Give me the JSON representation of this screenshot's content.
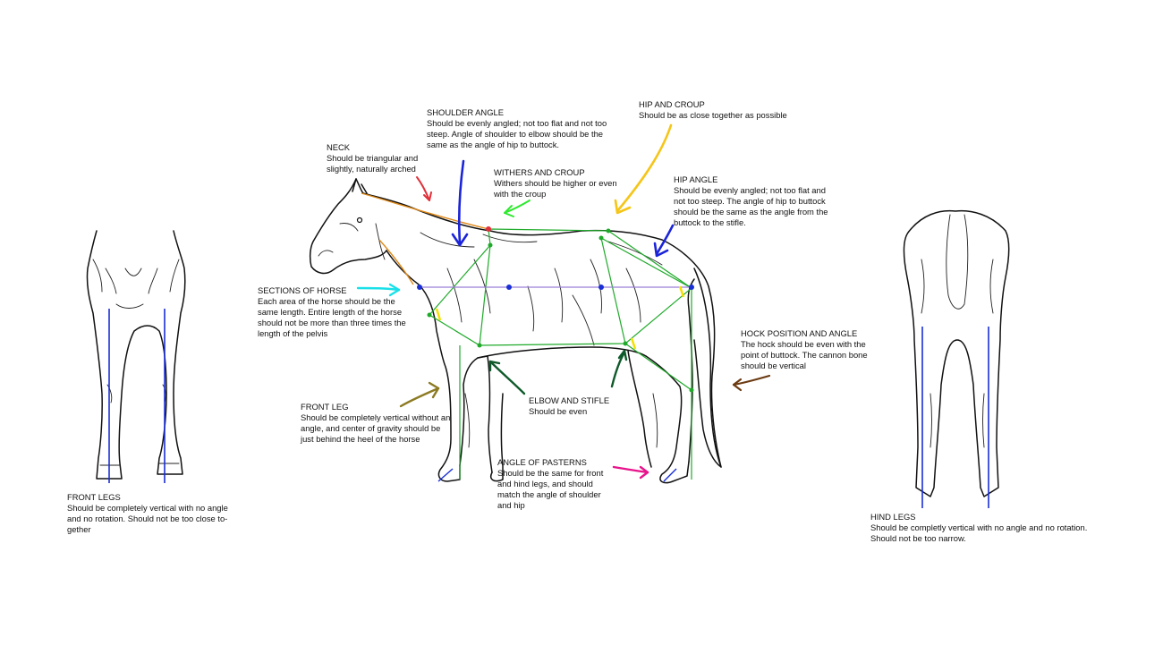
{
  "labels": {
    "shoulder_angle": {
      "title": "SHOULDER ANGLE",
      "text": "Should be evenly angled; not too flat and not too steep. Angle of shoulder to elbow should be the same as the angle of hip to buttock."
    },
    "hip_and_croup": {
      "title": "HIP AND CROUP",
      "text": "Should be as close together as possible"
    },
    "neck": {
      "title": "NECK",
      "text": "Should be triangular and slightly, naturally arched"
    },
    "withers_and_croup": {
      "title": "WITHERS AND CROUP",
      "text": "Withers should be higher or even with the croup"
    },
    "hip_angle": {
      "title": "HIP ANGLE",
      "text": "Should be evenly angled; not too flat and not too steep. The angle of hip to buttock should be the same as the angle from the buttock to the stifle."
    },
    "sections_of_horse": {
      "title": "SECTIONS OF HORSE",
      "text": "Each area of the horse should be the same length. Entire length of the horse should not be more than three times the length of the pelvis"
    },
    "hock_position": {
      "title": "HOCK POSITION AND ANGLE",
      "text": "The hock should be even with the point of buttock. The cannon bone should be vertical"
    },
    "front_leg": {
      "title": "FRONT LEG",
      "text": "Should be completely vertical without an angle, and center of gravity should be just behind the heel of the horse"
    },
    "elbow_and_stifle": {
      "title": "ELBOW AND STIFLE",
      "text": "Should be even"
    },
    "angle_of_pasterns": {
      "title": "ANGLE OF PASTERNS",
      "text": "Should be the same for front and hind legs, and should match the angle of shoulder and hip"
    },
    "front_legs": {
      "title": "FRONT LEGS",
      "text": "Should be completely vertical with no angle and no rotation. Should not be too close to-gether"
    },
    "hind_legs": {
      "title": "HIND LEGS",
      "text": "Should be completly vertical with no angle and no rotation. Should not be too narrow."
    }
  },
  "colors": {
    "guide_green": "#1faa2a",
    "vertical_blue": "#1a2fd6",
    "section_line": "#9b7fd6",
    "neck_arrow": "#e0303a",
    "shoulder_arrow": "#1b24d8",
    "withers_arrow": "#2ee82e",
    "hip_croup_arrow": "#f5c518",
    "hip_angle_arrow": "#1b24d8",
    "sections_arrow": "#19e0e8",
    "hock_arrow": "#6b3b12",
    "front_leg_arrow": "#8c7a22",
    "elbow_arrow": "#0f5a2a",
    "pasterns_arrow": "#e8148c",
    "neck_line": "#e08a1a",
    "angle_marker": "#f5e000"
  }
}
